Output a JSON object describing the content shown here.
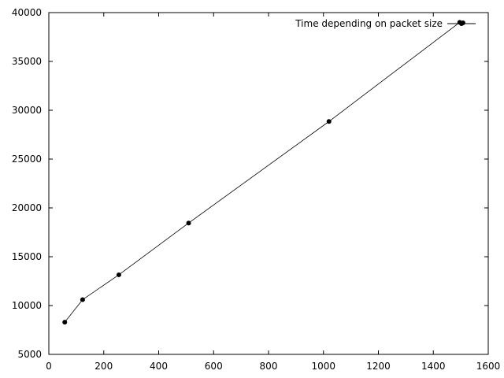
{
  "chart_data": {
    "type": "line",
    "title": "",
    "xlabel": "",
    "ylabel": "",
    "xlim": [
      0,
      1600
    ],
    "ylim": [
      5000,
      40000
    ],
    "x_ticks": [
      "0",
      "200",
      "400",
      "600",
      "800",
      "1000",
      "1200",
      "1400",
      "1600"
    ],
    "y_ticks": [
      "5000",
      "10000",
      "15000",
      "20000",
      "25000",
      "30000",
      "35000",
      "40000"
    ],
    "grid": false,
    "legend_position": "top-right",
    "series": [
      {
        "name": "Time depending on packet size",
        "color": "#000000",
        "marker": "circle",
        "points": [
          {
            "x": 58,
            "y": 8300
          },
          {
            "x": 123,
            "y": 10600
          },
          {
            "x": 255,
            "y": 13150
          },
          {
            "x": 509,
            "y": 18450
          },
          {
            "x": 1020,
            "y": 28850
          },
          {
            "x": 1496,
            "y": 39000
          },
          {
            "x": 1508,
            "y": 38950
          }
        ]
      }
    ]
  }
}
